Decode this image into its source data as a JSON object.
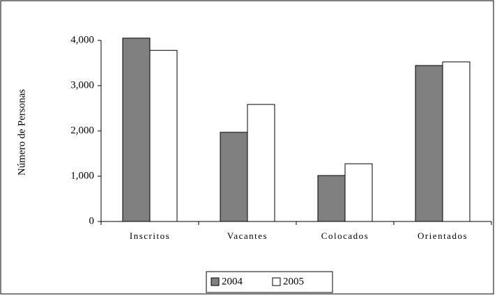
{
  "chart_data": {
    "type": "bar",
    "y_axis_label": "Número de Personas",
    "categories": [
      "Inscritos",
      "Vacantes",
      "Colocados",
      "Orientados"
    ],
    "series": [
      {
        "name": "2004",
        "color": "#808080",
        "values": [
          4050,
          1970,
          1015,
          3445
        ]
      },
      {
        "name": "2005",
        "color": "#ffffff",
        "values": [
          3780,
          2585,
          1275,
          3525
        ]
      }
    ],
    "ylim": [
      0,
      4000
    ],
    "yticks": [
      0,
      {
        "value": 1000,
        "label": "1,000"
      },
      {
        "value": 2000,
        "label": "2,000"
      },
      {
        "value": 3000,
        "label": "3,000"
      },
      {
        "value": 4000,
        "label": "4,000"
      }
    ],
    "legend": "bottom"
  }
}
